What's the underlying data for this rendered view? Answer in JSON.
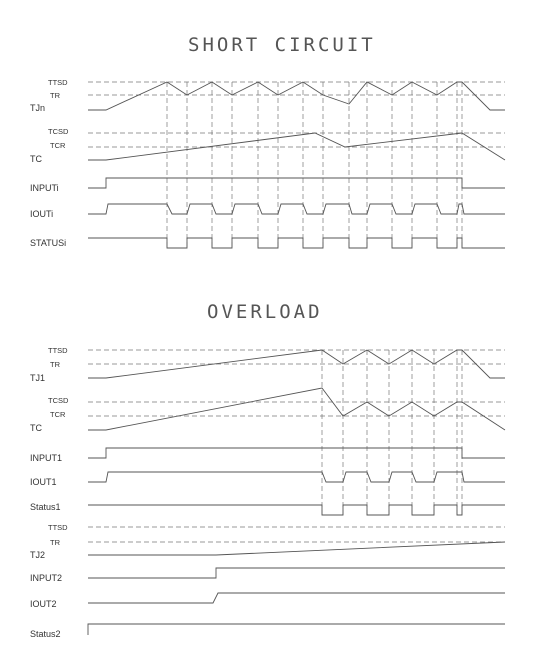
{
  "titles": {
    "short_circuit": "SHORT CIRCUIT",
    "overload": "OVERLOAD"
  },
  "short_circuit_labels": {
    "ttsd": "TTSD",
    "tr": "TR",
    "tjn": "TJn",
    "tcsd": "TCSD",
    "tcr": "TCR",
    "tc": "TC",
    "input": "INPUTi",
    "iout": "IOUTi",
    "status": "STATUSi"
  },
  "overload_labels": {
    "ttsd": "TTSD",
    "tr": "TR",
    "tj1": "TJ1",
    "tcsd": "TCSD",
    "tcr": "TCR",
    "tc": "TC",
    "input1": "INPUT1",
    "iout1": "IOUT1",
    "status1": "Status1",
    "ttsd2": "TTSD",
    "tr2": "TR",
    "tj2": "TJ2",
    "input2": "INPUT2",
    "iout2": "IOUT2",
    "status2": "Status2"
  }
}
